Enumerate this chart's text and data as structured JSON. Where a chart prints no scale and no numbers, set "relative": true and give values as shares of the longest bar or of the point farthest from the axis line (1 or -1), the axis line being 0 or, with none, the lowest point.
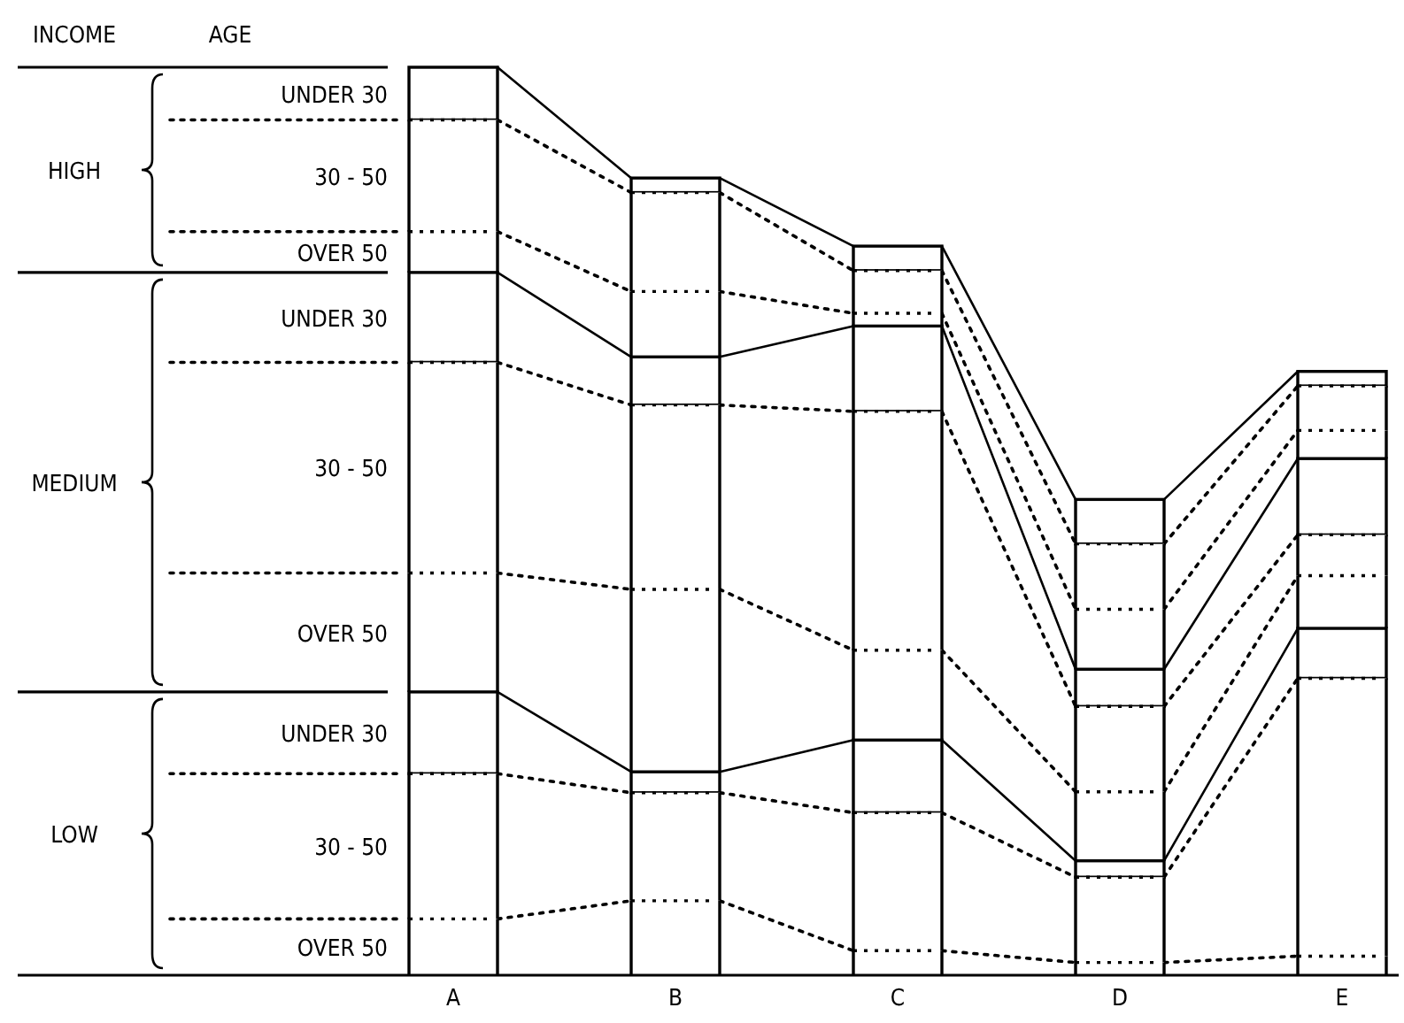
{
  "chart_data": {
    "type": "bar",
    "stacked": true,
    "relative": true,
    "legend": "left",
    "categories": [
      "A",
      "B",
      "C",
      "D",
      "E"
    ],
    "annotations": [
      "INCOME",
      "AGE",
      "HIGH",
      "MEDIUM",
      "LOW"
    ],
    "series": [
      {
        "name": "OVER 50",
        "color": "#ffffff",
        "line_style": "dotted",
        "values": [
          0.062,
          0.082,
          0.027,
          0.014,
          0.021
        ]
      },
      {
        "name": "30 - 50",
        "color": "#ffffff",
        "line_style": "dotted",
        "values": [
          0.16,
          0.119,
          0.152,
          0.094,
          0.306
        ]
      },
      {
        "name": "UNDER 30",
        "color": "#ffffff",
        "line_style": "solid",
        "values": [
          0.09,
          0.023,
          0.08,
          0.018,
          0.055
        ]
      },
      {
        "name": "OVER 50",
        "color": "#ffffff",
        "line_style": "dotted",
        "values": [
          0.131,
          0.201,
          0.099,
          0.076,
          0.058
        ]
      },
      {
        "name": "30 - 50",
        "color": "#ffffff",
        "line_style": "dotted",
        "values": [
          0.232,
          0.203,
          0.263,
          0.094,
          0.045
        ]
      },
      {
        "name": "UNDER 30",
        "color": "#ffffff",
        "line_style": "solid",
        "values": [
          0.099,
          0.053,
          0.094,
          0.041,
          0.084
        ]
      },
      {
        "name": "OVER 50",
        "color": "#ffffff",
        "line_style": "dotted",
        "values": [
          0.045,
          0.072,
          0.014,
          0.066,
          0.031
        ]
      },
      {
        "name": "30 - 50",
        "color": "#ffffff",
        "line_style": "dotted",
        "values": [
          0.123,
          0.109,
          0.047,
          0.072,
          0.049
        ]
      },
      {
        "name": "UNDER 30",
        "color": "#ffffff",
        "line_style": "solid",
        "values": [
          0.058,
          0.016,
          0.027,
          0.049,
          0.016
        ]
      }
    ]
  }
}
